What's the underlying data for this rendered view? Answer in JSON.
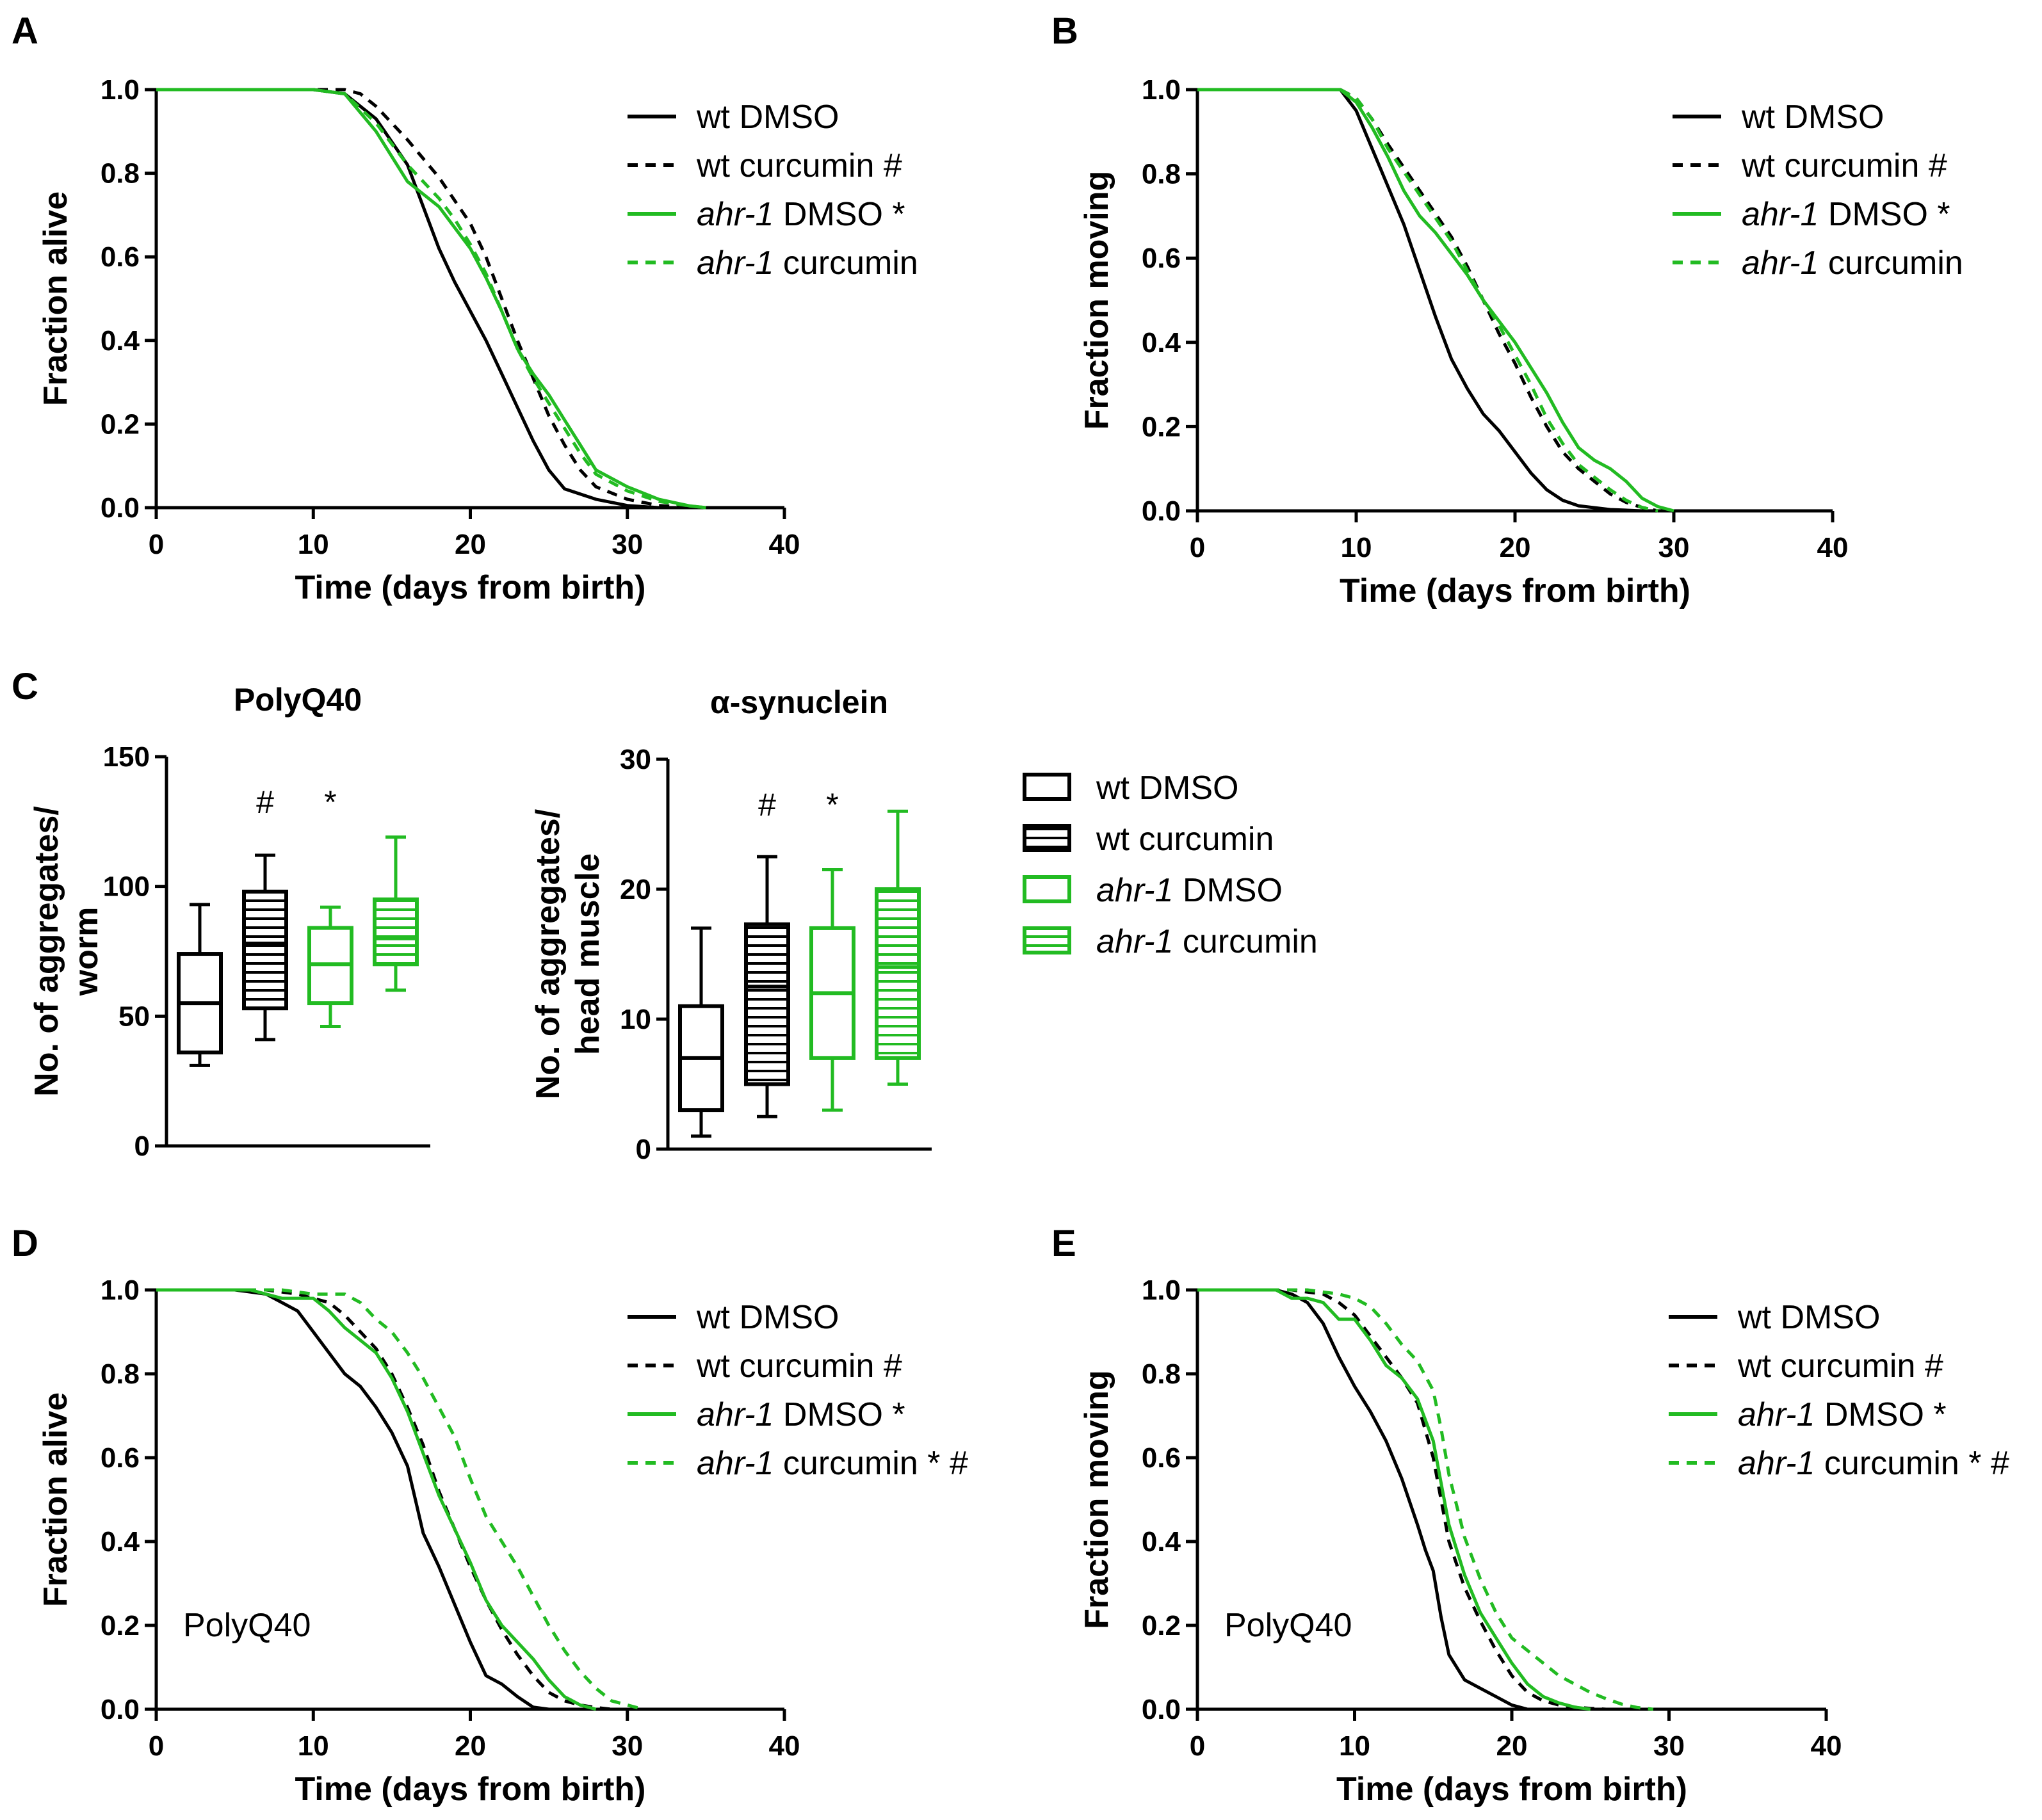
{
  "colors": {
    "black": "#000000",
    "green": "#22bb22"
  },
  "legend_survival": [
    {
      "style": "solid",
      "color": "black",
      "prefix": "wt",
      "text": " DMSO",
      "mark": ""
    },
    {
      "style": "dashed",
      "color": "black",
      "prefix": "wt",
      "text": " curcumin",
      "mark": "#"
    },
    {
      "style": "solid",
      "color": "green",
      "prefix": "ahr-1",
      "italic": true,
      "text": " DMSO",
      "mark": "*"
    },
    {
      "style": "dashed",
      "color": "green",
      "prefix": "ahr-1",
      "italic": true,
      "text": " curcumin",
      "mark": ""
    }
  ],
  "legend_box": [
    {
      "color": "black",
      "hatched": false,
      "prefix": "wt",
      "text": " DMSO"
    },
    {
      "color": "black",
      "hatched": true,
      "prefix": "wt",
      "text": " curcumin"
    },
    {
      "color": "green",
      "hatched": false,
      "prefix": "ahr-1",
      "italic": true,
      "text": " DMSO"
    },
    {
      "color": "green",
      "hatched": true,
      "prefix": "ahr-1",
      "italic": true,
      "text": " curcumin"
    }
  ],
  "chart_data": [
    {
      "panel": "A",
      "type": "line",
      "xlabel": "Time (days from birth)",
      "ylabel": "Fraction alive",
      "xlim": [
        0,
        40
      ],
      "ylim": [
        0,
        1
      ],
      "xticks": [
        "0",
        "10",
        "20",
        "30",
        "40"
      ],
      "yticks": [
        "0.0",
        "0.2",
        "0.4",
        "0.6",
        "0.8",
        "1.0"
      ],
      "annotation": "",
      "series": [
        {
          "name": "wt DMSO",
          "color": "black",
          "dashed": false,
          "x": [
            0,
            10,
            12,
            14,
            16,
            17,
            18,
            19,
            20,
            21,
            22,
            23,
            24,
            25,
            26,
            28,
            30,
            32
          ],
          "y": [
            1,
            1,
            0.99,
            0.93,
            0.82,
            0.72,
            0.62,
            0.54,
            0.47,
            0.4,
            0.32,
            0.24,
            0.16,
            0.09,
            0.045,
            0.02,
            0.005,
            0
          ]
        },
        {
          "name": "wt curcumin",
          "color": "black",
          "dashed": true,
          "x": [
            0,
            10,
            12,
            13,
            14,
            16,
            18,
            20,
            21,
            22,
            23,
            24,
            25,
            26,
            27,
            28,
            30,
            32,
            34
          ],
          "y": [
            1,
            1,
            1,
            0.99,
            0.96,
            0.88,
            0.79,
            0.68,
            0.6,
            0.5,
            0.4,
            0.31,
            0.22,
            0.15,
            0.09,
            0.05,
            0.02,
            0.005,
            0
          ]
        },
        {
          "name": "ahr-1 DMSO",
          "color": "green",
          "dashed": false,
          "x": [
            0,
            10,
            12,
            14,
            16,
            18,
            19,
            20,
            21,
            22,
            23,
            24,
            25,
            26,
            27,
            28,
            30,
            32,
            34,
            35
          ],
          "y": [
            1,
            1,
            0.99,
            0.9,
            0.78,
            0.72,
            0.67,
            0.62,
            0.55,
            0.47,
            0.38,
            0.32,
            0.27,
            0.21,
            0.15,
            0.09,
            0.05,
            0.02,
            0.004,
            0
          ]
        },
        {
          "name": "ahr-1 curcumin",
          "color": "green",
          "dashed": true,
          "x": [
            0,
            10,
            12,
            14,
            16,
            18,
            19,
            20,
            21,
            22,
            23,
            24,
            25,
            26,
            27,
            28,
            30,
            32,
            34,
            35
          ],
          "y": [
            1,
            1,
            0.99,
            0.92,
            0.82,
            0.74,
            0.69,
            0.63,
            0.56,
            0.47,
            0.38,
            0.31,
            0.25,
            0.19,
            0.13,
            0.08,
            0.04,
            0.015,
            0.004,
            0
          ]
        }
      ]
    },
    {
      "panel": "B",
      "type": "line",
      "xlabel": "Time (days from birth)",
      "ylabel": "Fraction moving",
      "xlim": [
        0,
        40
      ],
      "ylim": [
        0,
        1
      ],
      "xticks": [
        "0",
        "10",
        "20",
        "30",
        "40"
      ],
      "yticks": [
        "0.0",
        "0.2",
        "0.4",
        "0.6",
        "0.8",
        "1.0"
      ],
      "annotation": "",
      "series": [
        {
          "name": "wt DMSO",
          "color": "black",
          "dashed": false,
          "x": [
            0,
            9,
            10,
            11,
            12,
            13,
            14,
            15,
            16,
            17,
            18,
            19,
            20,
            21,
            22,
            23,
            24,
            26,
            28
          ],
          "y": [
            1,
            1,
            0.95,
            0.86,
            0.77,
            0.68,
            0.57,
            0.46,
            0.36,
            0.29,
            0.23,
            0.19,
            0.14,
            0.09,
            0.05,
            0.025,
            0.012,
            0.003,
            0
          ]
        },
        {
          "name": "wt curcumin",
          "color": "black",
          "dashed": true,
          "x": [
            0,
            9,
            10,
            11,
            12,
            14,
            16,
            17,
            18,
            19,
            20,
            21,
            22,
            23,
            24,
            25,
            26,
            27,
            28,
            29
          ],
          "y": [
            1,
            1,
            0.98,
            0.93,
            0.87,
            0.76,
            0.65,
            0.58,
            0.5,
            0.42,
            0.35,
            0.27,
            0.2,
            0.14,
            0.1,
            0.07,
            0.04,
            0.02,
            0.008,
            0
          ]
        },
        {
          "name": "ahr-1 DMSO",
          "color": "green",
          "dashed": false,
          "x": [
            0,
            9,
            10,
            11,
            12,
            13,
            14,
            15,
            16,
            17,
            18,
            19,
            20,
            21,
            22,
            23,
            24,
            25,
            26,
            27,
            28,
            29,
            30
          ],
          "y": [
            1,
            1,
            0.97,
            0.91,
            0.84,
            0.76,
            0.7,
            0.66,
            0.61,
            0.56,
            0.5,
            0.45,
            0.4,
            0.34,
            0.28,
            0.21,
            0.15,
            0.12,
            0.1,
            0.07,
            0.03,
            0.01,
            0
          ]
        },
        {
          "name": "ahr-1 curcumin",
          "color": "green",
          "dashed": true,
          "x": [
            0,
            9,
            10,
            11,
            12,
            14,
            16,
            17,
            18,
            19,
            20,
            21,
            22,
            23,
            24,
            25,
            26,
            27,
            28,
            29
          ],
          "y": [
            1,
            1,
            0.98,
            0.93,
            0.86,
            0.75,
            0.64,
            0.57,
            0.5,
            0.44,
            0.37,
            0.3,
            0.22,
            0.16,
            0.11,
            0.08,
            0.05,
            0.025,
            0.008,
            0
          ]
        }
      ]
    },
    {
      "panel": "C-left",
      "type": "box",
      "title": "PolyQ40",
      "ylabel": [
        "No. of aggregates/",
        "worm"
      ],
      "ylim": [
        0,
        150
      ],
      "yticks": [
        "0",
        "50",
        "100",
        "150"
      ],
      "groups": [
        {
          "name": "wt DMSO",
          "color": "black",
          "hatched": false,
          "min": 31,
          "q1": 36,
          "median": 55,
          "q3": 74,
          "max": 93,
          "mark": ""
        },
        {
          "name": "wt curcumin",
          "color": "black",
          "hatched": true,
          "min": 41,
          "q1": 53,
          "median": 78,
          "q3": 98,
          "max": 112,
          "mark": "#"
        },
        {
          "name": "ahr-1 DMSO",
          "color": "green",
          "hatched": false,
          "min": 46,
          "q1": 55,
          "median": 70,
          "q3": 84,
          "max": 92,
          "mark": "*"
        },
        {
          "name": "ahr-1 curcumin",
          "color": "green",
          "hatched": true,
          "min": 60,
          "q1": 70,
          "median": 80,
          "q3": 95,
          "max": 119,
          "mark": ""
        }
      ]
    },
    {
      "panel": "C-right",
      "type": "box",
      "title": "α-synuclein",
      "ylabel": [
        "No. of aggregates/",
        "head muscle"
      ],
      "ylim": [
        0,
        30
      ],
      "yticks": [
        "0",
        "10",
        "20",
        "30"
      ],
      "groups": [
        {
          "name": "wt DMSO",
          "color": "black",
          "hatched": false,
          "min": 1,
          "q1": 3,
          "median": 7,
          "q3": 11,
          "max": 17,
          "mark": ""
        },
        {
          "name": "wt curcumin",
          "color": "black",
          "hatched": true,
          "min": 2.5,
          "q1": 5,
          "median": 12.5,
          "q3": 17.3,
          "max": 22.5,
          "mark": "#"
        },
        {
          "name": "ahr-1 DMSO",
          "color": "green",
          "hatched": false,
          "min": 3,
          "q1": 7,
          "median": 12,
          "q3": 17,
          "max": 21.5,
          "mark": "*"
        },
        {
          "name": "ahr-1 curcumin",
          "color": "green",
          "hatched": true,
          "min": 5,
          "q1": 7,
          "median": 14,
          "q3": 20,
          "max": 26,
          "mark": ""
        }
      ]
    },
    {
      "panel": "D",
      "type": "line",
      "xlabel": "Time (days from birth)",
      "ylabel": "Fraction alive",
      "xlim": [
        0,
        40
      ],
      "ylim": [
        0,
        1
      ],
      "xticks": [
        "0",
        "10",
        "20",
        "30",
        "40"
      ],
      "yticks": [
        "0.0",
        "0.2",
        "0.4",
        "0.6",
        "0.8",
        "1.0"
      ],
      "annotation": "PolyQ40",
      "series": [
        {
          "name": "wt DMSO",
          "color": "black",
          "dashed": false,
          "x": [
            0,
            5,
            7,
            8,
            9,
            10,
            11,
            12,
            13,
            14,
            15,
            16,
            16.5,
            17,
            18,
            19,
            20,
            21,
            22,
            23,
            24,
            25
          ],
          "y": [
            1,
            1,
            0.99,
            0.97,
            0.95,
            0.9,
            0.85,
            0.8,
            0.77,
            0.72,
            0.66,
            0.58,
            0.5,
            0.42,
            0.34,
            0.25,
            0.16,
            0.08,
            0.06,
            0.03,
            0.005,
            0
          ]
        },
        {
          "name": "wt curcumin",
          "color": "black",
          "dashed": true,
          "x": [
            0,
            7,
            9,
            10,
            11,
            12,
            13,
            14,
            15,
            16,
            17,
            18,
            19,
            20,
            21,
            22,
            23,
            24,
            25,
            26,
            27,
            28,
            29
          ],
          "y": [
            1,
            1,
            0.99,
            0.98,
            0.97,
            0.94,
            0.9,
            0.86,
            0.8,
            0.72,
            0.63,
            0.52,
            0.43,
            0.34,
            0.26,
            0.19,
            0.13,
            0.08,
            0.04,
            0.02,
            0.01,
            0.004,
            0
          ]
        },
        {
          "name": "ahr-1 DMSO",
          "color": "green",
          "dashed": false,
          "x": [
            0,
            6,
            8,
            10,
            11,
            12,
            13,
            14,
            15,
            16,
            17,
            18,
            19,
            20,
            21,
            22,
            23,
            24,
            25,
            26,
            27,
            28
          ],
          "y": [
            1,
            1,
            0.98,
            0.98,
            0.95,
            0.91,
            0.88,
            0.85,
            0.79,
            0.71,
            0.61,
            0.51,
            0.43,
            0.35,
            0.26,
            0.2,
            0.16,
            0.12,
            0.07,
            0.03,
            0.01,
            0
          ]
        },
        {
          "name": "ahr-1 curcumin",
          "color": "green",
          "dashed": true,
          "x": [
            0,
            8,
            10,
            11,
            12,
            13,
            14,
            15,
            16,
            17,
            18,
            19,
            20,
            21,
            22,
            23,
            24,
            25,
            26,
            27,
            28,
            29,
            30,
            31
          ],
          "y": [
            1,
            1,
            0.99,
            0.99,
            0.99,
            0.97,
            0.93,
            0.9,
            0.85,
            0.79,
            0.72,
            0.65,
            0.55,
            0.46,
            0.4,
            0.34,
            0.27,
            0.2,
            0.14,
            0.09,
            0.05,
            0.02,
            0.01,
            0
          ]
        }
      ]
    },
    {
      "panel": "E",
      "type": "line",
      "xlabel": "Time (days from birth)",
      "ylabel": "Fraction moving",
      "xlim": [
        0,
        40
      ],
      "ylim": [
        0,
        1
      ],
      "xticks": [
        "0",
        "10",
        "20",
        "30",
        "40"
      ],
      "yticks": [
        "0.0",
        "0.2",
        "0.4",
        "0.6",
        "0.8",
        "1.0"
      ],
      "annotation": "PolyQ40",
      "series": [
        {
          "name": "wt DMSO",
          "color": "black",
          "dashed": false,
          "x": [
            0,
            5,
            6,
            7,
            8,
            9,
            10,
            11,
            12,
            13,
            14,
            14.5,
            15,
            15.5,
            16,
            17,
            18,
            19,
            20,
            21
          ],
          "y": [
            1,
            1,
            0.99,
            0.97,
            0.92,
            0.84,
            0.77,
            0.71,
            0.64,
            0.55,
            0.44,
            0.38,
            0.33,
            0.22,
            0.13,
            0.07,
            0.05,
            0.03,
            0.01,
            0
          ]
        },
        {
          "name": "wt curcumin",
          "color": "black",
          "dashed": true,
          "x": [
            0,
            6,
            8,
            9,
            10,
            11,
            12,
            13,
            14,
            15,
            15.5,
            16,
            17,
            18,
            19,
            20,
            21,
            22,
            23,
            24,
            25,
            26
          ],
          "y": [
            1,
            1,
            0.99,
            0.97,
            0.94,
            0.89,
            0.84,
            0.79,
            0.73,
            0.6,
            0.5,
            0.4,
            0.29,
            0.21,
            0.14,
            0.08,
            0.04,
            0.02,
            0.01,
            0.005,
            0.002,
            0
          ]
        },
        {
          "name": "ahr-1 DMSO",
          "color": "green",
          "dashed": false,
          "x": [
            0,
            5,
            6,
            7,
            8,
            9,
            10,
            11,
            12,
            13,
            14,
            15,
            15.5,
            16,
            17,
            18,
            19,
            20,
            21,
            22,
            23,
            24,
            25
          ],
          "y": [
            1,
            1,
            0.98,
            0.98,
            0.97,
            0.93,
            0.93,
            0.88,
            0.82,
            0.79,
            0.74,
            0.64,
            0.54,
            0.44,
            0.32,
            0.23,
            0.17,
            0.11,
            0.06,
            0.03,
            0.015,
            0.005,
            0
          ]
        },
        {
          "name": "ahr-1 curcumin",
          "color": "green",
          "dashed": true,
          "x": [
            0,
            7,
            9,
            10,
            11,
            12,
            13,
            14,
            15,
            15.5,
            16,
            17,
            18,
            19,
            20,
            21,
            22,
            23,
            24,
            25,
            26,
            27,
            28,
            29
          ],
          "y": [
            1,
            1,
            0.99,
            0.98,
            0.96,
            0.92,
            0.87,
            0.83,
            0.76,
            0.67,
            0.56,
            0.41,
            0.31,
            0.23,
            0.17,
            0.14,
            0.11,
            0.08,
            0.06,
            0.04,
            0.025,
            0.012,
            0.004,
            0
          ]
        }
      ]
    }
  ],
  "panel_labels": [
    "A",
    "B",
    "C",
    "D",
    "E"
  ]
}
